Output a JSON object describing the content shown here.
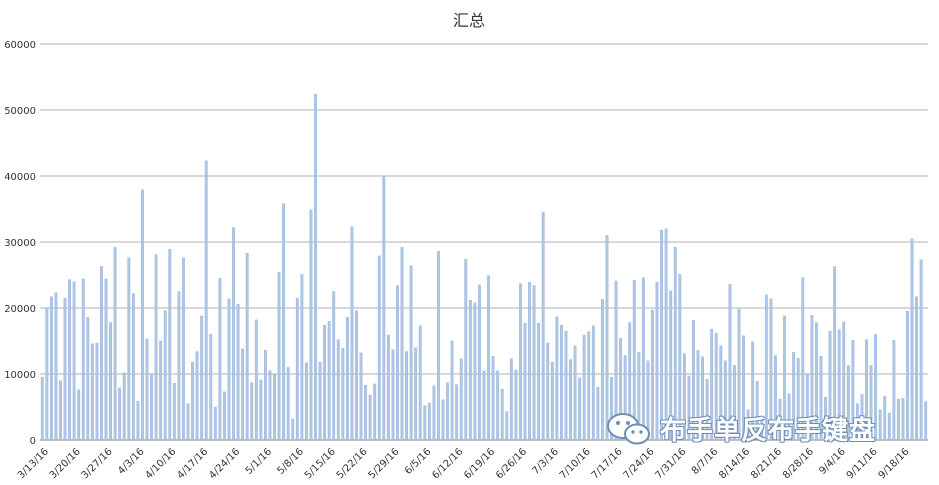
{
  "chart_data": {
    "type": "bar",
    "title": "汇总",
    "xlabel": "",
    "ylabel": "",
    "ylim": [
      0,
      60000
    ],
    "yticks": [
      "0",
      "10000",
      "20000",
      "30000",
      "40000",
      "50000",
      "60000"
    ],
    "grid": true,
    "legend": "none",
    "bar_color": "#aec6e6",
    "bar_edge_color": "#8aa9d0",
    "grid_color": "#999999",
    "xtick_labels": [
      "3/13/16",
      "3/20/16",
      "3/27/16",
      "4/3/16",
      "4/10/16",
      "4/17/16",
      "4/24/16",
      "5/1/16",
      "5/8/16",
      "5/15/16",
      "5/22/16",
      "5/29/16",
      "6/5/16",
      "6/12/16",
      "6/19/16",
      "6/26/16",
      "7/3/16",
      "7/10/16",
      "7/17/16",
      "7/24/16",
      "7/31/16",
      "8/7/16",
      "8/14/16",
      "8/21/16",
      "8/28/16",
      "9/4/16",
      "9/11/16",
      "9/18/16"
    ],
    "categories": [
      "3/12/16",
      "3/13/16",
      "3/14/16",
      "3/15/16",
      "3/16/16",
      "3/17/16",
      "3/18/16",
      "3/19/16",
      "3/20/16",
      "3/21/16",
      "3/22/16",
      "3/23/16",
      "3/24/16",
      "3/25/16",
      "3/26/16",
      "3/27/16",
      "3/28/16",
      "3/29/16",
      "3/30/16",
      "3/31/16",
      "4/1/16",
      "4/2/16",
      "4/3/16",
      "4/4/16",
      "4/5/16",
      "4/6/16",
      "4/7/16",
      "4/8/16",
      "4/9/16",
      "4/10/16",
      "4/11/16",
      "4/12/16",
      "4/13/16",
      "4/14/16",
      "4/15/16",
      "4/16/16",
      "4/17/16",
      "4/18/16",
      "4/19/16",
      "4/20/16",
      "4/21/16",
      "4/22/16",
      "4/23/16",
      "4/24/16",
      "4/25/16",
      "4/26/16",
      "4/27/16",
      "4/28/16",
      "4/29/16",
      "4/30/16",
      "5/1/16",
      "5/2/16",
      "5/3/16",
      "5/4/16",
      "5/5/16",
      "5/6/16",
      "5/7/16",
      "5/8/16",
      "5/9/16",
      "5/10/16",
      "5/11/16",
      "5/12/16",
      "5/13/16",
      "5/14/16",
      "5/15/16",
      "5/16/16",
      "5/17/16",
      "5/18/16",
      "5/19/16",
      "5/20/16",
      "5/21/16",
      "5/22/16",
      "5/23/16",
      "5/24/16",
      "5/25/16",
      "5/26/16",
      "5/27/16",
      "5/28/16",
      "5/29/16",
      "5/30/16",
      "5/31/16",
      "6/1/16",
      "6/2/16",
      "6/3/16",
      "6/4/16",
      "6/5/16",
      "6/6/16",
      "6/7/16",
      "6/8/16",
      "6/9/16",
      "6/10/16",
      "6/11/16",
      "6/12/16",
      "6/13/16",
      "6/14/16",
      "6/15/16",
      "6/16/16",
      "6/17/16",
      "6/18/16",
      "6/19/16",
      "6/20/16",
      "6/21/16",
      "6/22/16",
      "6/23/16",
      "6/24/16",
      "6/25/16",
      "6/26/16",
      "6/27/16",
      "6/28/16",
      "6/29/16",
      "6/30/16",
      "7/1/16",
      "7/2/16",
      "7/3/16",
      "7/4/16",
      "7/5/16",
      "7/6/16",
      "7/7/16",
      "7/8/16",
      "7/9/16",
      "7/10/16",
      "7/11/16",
      "7/12/16",
      "7/13/16",
      "7/14/16",
      "7/15/16",
      "7/16/16",
      "7/17/16",
      "7/18/16",
      "7/19/16",
      "7/20/16",
      "7/21/16",
      "7/22/16",
      "7/23/16",
      "7/24/16",
      "7/25/16",
      "7/26/16",
      "7/27/16",
      "7/28/16",
      "7/29/16",
      "7/30/16",
      "7/31/16",
      "8/1/16",
      "8/2/16",
      "8/3/16",
      "8/4/16",
      "8/5/16",
      "8/6/16",
      "8/7/16",
      "8/8/16",
      "8/9/16",
      "8/10/16",
      "8/11/16",
      "8/12/16",
      "8/13/16",
      "8/14/16",
      "8/15/16",
      "8/16/16",
      "8/17/16",
      "8/18/16",
      "8/19/16",
      "8/20/16",
      "8/21/16",
      "8/22/16",
      "8/23/16",
      "8/24/16",
      "8/25/16",
      "8/26/16",
      "8/27/16",
      "8/28/16",
      "8/29/16",
      "8/30/16",
      "8/31/16",
      "9/1/16",
      "9/2/16",
      "9/3/16",
      "9/4/16",
      "9/5/16",
      "9/6/16",
      "9/7/16",
      "9/8/16",
      "9/9/16",
      "9/10/16",
      "9/11/16",
      "9/12/16",
      "9/13/16",
      "9/14/16",
      "9/15/16",
      "9/16/16",
      "9/17/16",
      "9/18/16",
      "9/19/16",
      "9/20/16",
      "9/21/16",
      "9/22/16"
    ],
    "values": [
      9500,
      20000,
      21700,
      22300,
      9000,
      21500,
      24300,
      24000,
      7600,
      24400,
      18600,
      14600,
      14700,
      26300,
      24400,
      17800,
      29200,
      7900,
      10200,
      27600,
      22200,
      5900,
      37900,
      15300,
      10000,
      28100,
      15000,
      19600,
      28900,
      8600,
      22500,
      27600,
      5500,
      11800,
      13400,
      18800,
      42300,
      16000,
      5000,
      24500,
      7300,
      21400,
      32200,
      20600,
      13800,
      28300,
      8700,
      18200,
      9100,
      13600,
      10500,
      9900,
      25400,
      35800,
      11000,
      3200,
      21500,
      25100,
      11700,
      34900,
      52400,
      11800,
      17400,
      18000,
      22500,
      15200,
      13900,
      18600,
      32300,
      19600,
      13200,
      8300,
      6800,
      8500,
      27900,
      40000,
      15900,
      13700,
      23400,
      29200,
      13400,
      26400,
      14000,
      17300,
      5200,
      5600,
      8200,
      28600,
      6100,
      8700,
      15000,
      8400,
      12300,
      27400,
      21200,
      20800,
      23500,
      10500,
      24900,
      12700,
      10500,
      7700,
      4300,
      12300,
      10600,
      23700,
      17700,
      23900,
      23400,
      17700,
      34500,
      14700,
      11800,
      18700,
      17400,
      16500,
      12200,
      14300,
      9400,
      15900,
      16400,
      17300,
      8000,
      21300,
      31000,
      9500,
      24100,
      15400,
      12800,
      17800,
      24200,
      13300,
      24600,
      12000,
      19700,
      23900,
      31800,
      32000,
      22600,
      29200,
      25100,
      13100,
      9700,
      18100,
      13600,
      12600,
      9200,
      16800,
      16200,
      14300,
      12000,
      23600,
      11300,
      19800,
      15800,
      4600,
      14900,
      8900,
      3200,
      22000,
      21400,
      12800,
      6200,
      18800,
      7000,
      13300,
      12400,
      24600,
      10000,
      18900,
      17800,
      12700,
      6500,
      16500,
      26300,
      16700,
      17900,
      11300,
      15100,
      5500,
      6900,
      15200,
      11300,
      16000,
      4600,
      6600,
      4100,
      15100,
      6200,
      6300,
      19500,
      30500,
      21700,
      27300,
      5800
    ]
  }
}
